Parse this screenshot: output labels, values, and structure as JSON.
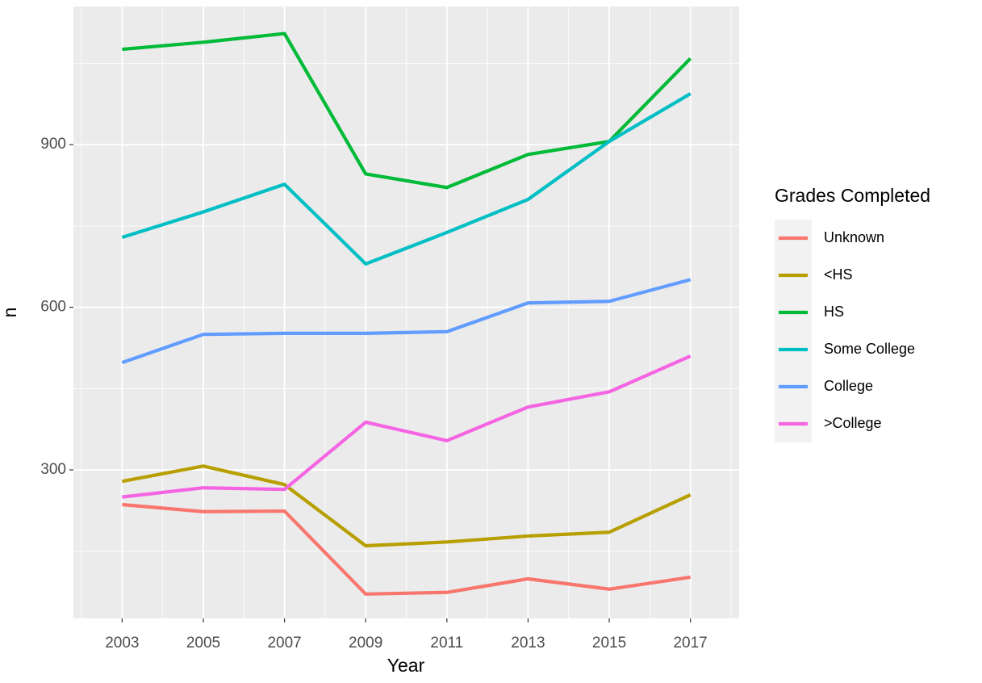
{
  "chart_data": {
    "type": "line",
    "x_label": "Year",
    "y_label": "n",
    "x": [
      2003,
      2005,
      2007,
      2009,
      2011,
      2013,
      2015,
      2017
    ],
    "xlim": [
      2001.8,
      2018.2
    ],
    "xticks": [
      2003,
      2005,
      2007,
      2009,
      2011,
      2013,
      2015,
      2017
    ],
    "ylim": [
      26,
      1155
    ],
    "yticks": [
      300,
      600,
      900
    ],
    "grid": true,
    "legend_position": "right",
    "legend_title": "Grades Completed",
    "series": [
      {
        "name": "Unknown",
        "color": "#F8766D",
        "values": [
          236,
          223,
          224,
          71,
          74,
          99,
          80,
          102
        ]
      },
      {
        "name": "<HS",
        "color": "#B79F00",
        "values": [
          279,
          307,
          273,
          160,
          167,
          178,
          185,
          254
        ]
      },
      {
        "name": "HS",
        "color": "#00BA38",
        "values": [
          1076,
          1089,
          1105,
          846,
          821,
          882,
          906,
          1059
        ]
      },
      {
        "name": "Some College",
        "color": "#00BFC4",
        "values": [
          729,
          776,
          827,
          680,
          738,
          799,
          906,
          994
        ]
      },
      {
        "name": "College",
        "color": "#619CFF",
        "values": [
          498,
          550,
          552,
          552,
          555,
          608,
          611,
          651
        ]
      },
      {
        "name": ">College",
        "color": "#F564E3",
        "values": [
          250,
          267,
          264,
          388,
          354,
          416,
          444,
          510
        ]
      }
    ]
  }
}
